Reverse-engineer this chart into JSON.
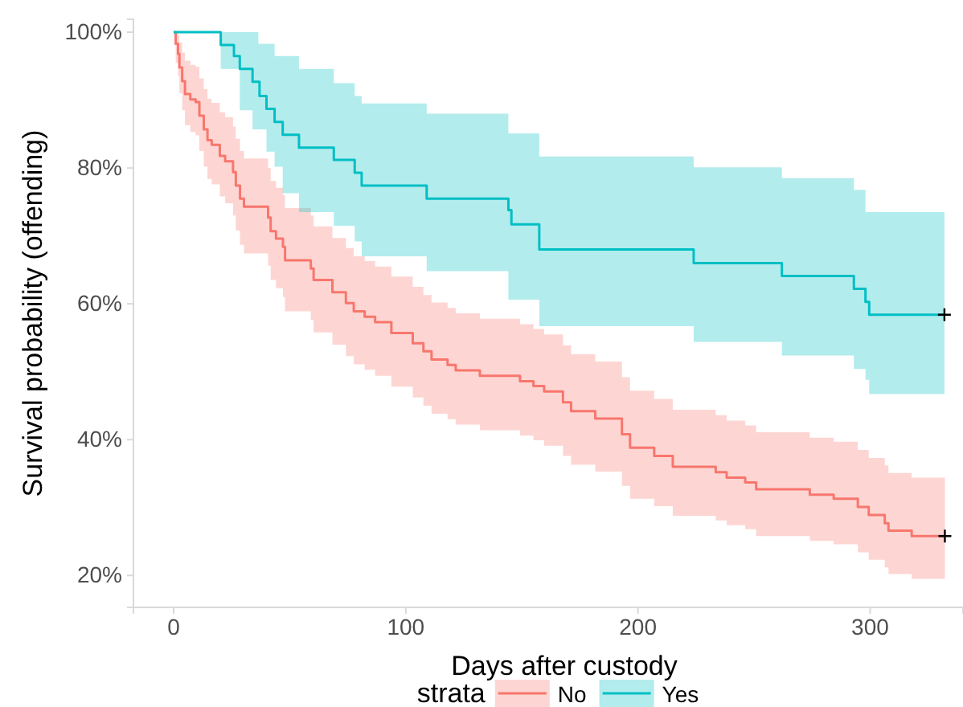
{
  "chart_data": {
    "type": "step",
    "xlabel": "Days after custody",
    "ylabel": "Survival probability (offending)",
    "legend_title": "strata",
    "legend": "bottom",
    "grid": false,
    "xlim": [
      -17.3,
      340
    ],
    "xticks": [
      0,
      100,
      200,
      300
    ],
    "ylim": [
      15.3,
      101.9
    ],
    "yticks": [
      {
        "value": 20,
        "label": "20%"
      },
      {
        "value": 40,
        "label": "40%"
      },
      {
        "value": 60,
        "label": "60%"
      },
      {
        "value": 80,
        "label": "80%"
      },
      {
        "value": 100,
        "label": "100%"
      }
    ],
    "series": [
      {
        "name": "No",
        "color": "#f8766d",
        "x": [
          0,
          0.9,
          1.9,
          2.5,
          3.7,
          4.9,
          7.2,
          9.5,
          11.1,
          13,
          14.6,
          16.4,
          19.9,
          22.2,
          25.6,
          26.8,
          28.6,
          30.3,
          40.7,
          41.8,
          44.1,
          47.1,
          48,
          59.1,
          60.3,
          68.4,
          74.2,
          77.6,
          82.3,
          86.8,
          93.8,
          103,
          107.6,
          111.1,
          118,
          121.5,
          131.9,
          149.2,
          155,
          159.6,
          167.7,
          171.2,
          181.6,
          193.1,
          196.6,
          207,
          215,
          233.5,
          238.2,
          246.2,
          250.9,
          274,
          284.3,
          294.7,
          299.4,
          306.3,
          307.9,
          317.9,
          332.2
        ],
        "values": [
          100,
          98.3,
          96.8,
          94.8,
          92.8,
          90.9,
          90.1,
          89.7,
          87.7,
          85.7,
          84.1,
          83.4,
          81.8,
          81,
          79.4,
          77.4,
          75.5,
          74.3,
          72.7,
          70.7,
          69.6,
          68.4,
          66.4,
          65.2,
          63.5,
          61.7,
          60.1,
          58.9,
          58.1,
          57.3,
          55.7,
          54.2,
          53,
          51.8,
          51,
          50.2,
          49.4,
          48.6,
          47.9,
          47.1,
          45.5,
          44.2,
          43.1,
          40.8,
          38.8,
          37.6,
          36,
          35.2,
          34.4,
          33.7,
          32.7,
          31.9,
          31.3,
          30.1,
          28.9,
          27.7,
          26.6,
          25.8,
          25.8
        ],
        "upper": [
          100,
          100,
          99.5,
          98.5,
          97,
          95.8,
          95.2,
          94.9,
          93.2,
          91.6,
          90.2,
          89.6,
          88.2,
          87.5,
          86.1,
          84.3,
          82.5,
          81.4,
          80,
          78.1,
          77.1,
          76,
          74.1,
          73,
          71.4,
          69.7,
          68.2,
          67,
          66.3,
          65.5,
          64,
          62.5,
          61.3,
          60.2,
          59.4,
          58.6,
          57.8,
          57,
          56.3,
          55.5,
          53.9,
          52.6,
          51.5,
          49.2,
          47.2,
          46,
          44.4,
          43.6,
          42.8,
          42.1,
          41.1,
          40.3,
          39.7,
          38.5,
          37.3,
          36.2,
          35.1,
          34.4,
          34.4
        ],
        "lower": [
          100,
          95.5,
          93.5,
          91,
          88.5,
          86.3,
          85.3,
          84.8,
          82.5,
          80.2,
          78.4,
          77.6,
          75.8,
          74.8,
          73,
          70.8,
          68.7,
          67.4,
          65.6,
          63.5,
          62.3,
          61,
          58.9,
          57.6,
          55.8,
          54,
          52.3,
          51.1,
          50.3,
          49.4,
          47.8,
          46.2,
          45,
          43.8,
          43,
          42.2,
          41.4,
          40.6,
          39.9,
          39.1,
          37.6,
          36.3,
          35.3,
          33.2,
          31.3,
          30.2,
          28.8,
          28.1,
          27.4,
          26.8,
          25.8,
          25.1,
          24.6,
          23.4,
          22.3,
          21.2,
          20.2,
          19.5,
          19.5
        ]
      },
      {
        "name": "Yes",
        "color": "#00bfc4",
        "x": [
          0,
          20.3,
          26,
          28.5,
          34,
          36.5,
          37,
          40,
          43.5,
          47,
          54,
          69,
          78,
          81,
          109,
          144.2,
          145.5,
          157.5,
          224,
          262,
          293,
          298,
          299.6,
          332
        ],
        "values": [
          100,
          98.1,
          96.5,
          94.6,
          92.7,
          92.7,
          90.6,
          88.7,
          86.8,
          84.9,
          83,
          81.2,
          79.3,
          77.4,
          75.5,
          73.8,
          71.7,
          68,
          66,
          64.1,
          62.2,
          60.3,
          58.4,
          58.4
        ],
        "upper": [
          100,
          100,
          100,
          100,
          100,
          98.3,
          98.3,
          98.3,
          96.5,
          96.5,
          94.6,
          92.5,
          90.6,
          89.5,
          88,
          85.1,
          85.1,
          81.7,
          80.1,
          78.5,
          76.8,
          73.5,
          73.5,
          73.5
        ],
        "lower": [
          100,
          94.6,
          94.6,
          88.5,
          85.7,
          85.7,
          85.7,
          82.4,
          80.2,
          76.3,
          73.5,
          71.5,
          69.2,
          67,
          64.8,
          60.6,
          60.6,
          56.7,
          54.4,
          52.4,
          50.4,
          48.8,
          46.7,
          46.7
        ]
      }
    ]
  }
}
